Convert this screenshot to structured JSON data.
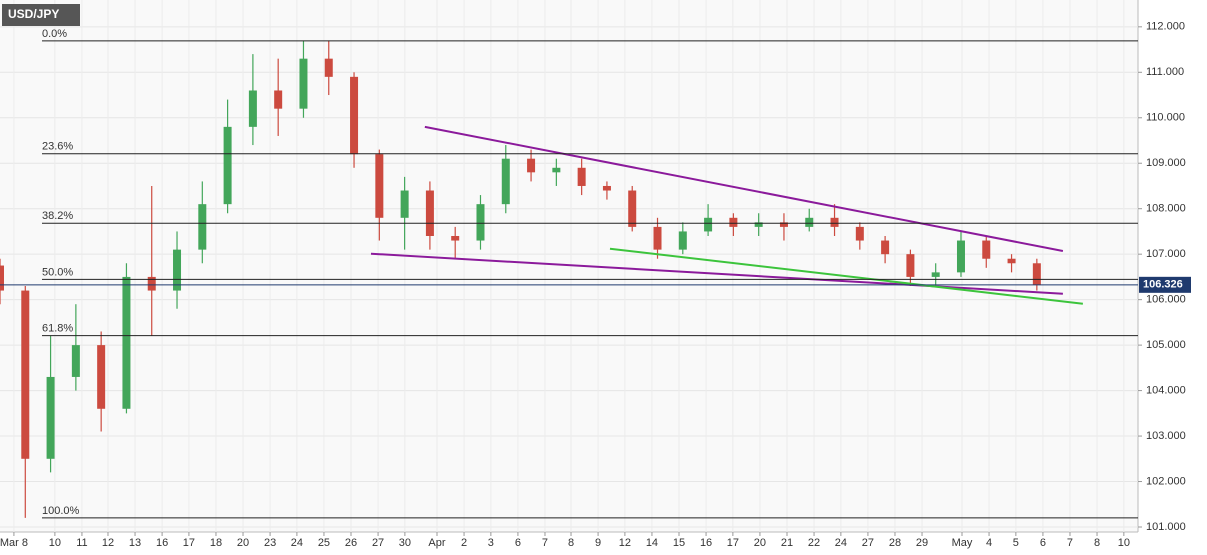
{
  "chart_data": {
    "type": "candlestick",
    "title": "USD/JPY",
    "x": [
      0,
      1,
      2,
      3,
      4,
      5,
      6,
      7,
      8,
      9,
      10,
      11,
      12,
      13,
      14,
      15,
      16,
      17,
      18,
      19,
      20,
      21,
      22,
      23,
      24,
      25,
      26,
      27,
      28,
      29,
      30,
      31,
      32,
      33,
      34,
      35,
      36,
      37,
      38,
      39,
      40,
      41
    ],
    "open": [
      106.75,
      106.2,
      102.5,
      104.3,
      105.0,
      103.6,
      106.5,
      106.2,
      107.1,
      108.1,
      109.8,
      110.6,
      110.2,
      111.3,
      110.9,
      109.2,
      107.8,
      108.4,
      107.4,
      107.3,
      108.1,
      109.1,
      108.8,
      108.9,
      108.5,
      108.4,
      107.6,
      107.1,
      107.5,
      107.8,
      107.6,
      107.7,
      107.6,
      107.8,
      107.6,
      107.3,
      107.0,
      106.5,
      106.6,
      107.3,
      106.9,
      106.8
    ],
    "high": [
      106.9,
      106.3,
      105.2,
      105.9,
      105.3,
      106.8,
      108.5,
      107.5,
      108.6,
      110.4,
      111.4,
      111.3,
      111.7,
      111.7,
      111.0,
      109.3,
      108.7,
      108.6,
      107.6,
      108.3,
      109.4,
      109.3,
      109.1,
      109.1,
      108.6,
      108.5,
      107.8,
      107.7,
      108.1,
      107.9,
      107.9,
      107.9,
      108.0,
      108.1,
      107.7,
      107.4,
      107.1,
      106.8,
      107.5,
      107.4,
      107.0,
      106.9
    ],
    "low": [
      105.9,
      101.2,
      102.2,
      104.0,
      103.1,
      103.5,
      105.2,
      105.8,
      106.8,
      107.9,
      109.4,
      109.6,
      110.0,
      110.5,
      108.9,
      107.3,
      107.1,
      107.1,
      106.9,
      107.1,
      107.9,
      108.6,
      108.5,
      108.3,
      108.2,
      107.5,
      106.9,
      107.0,
      107.4,
      107.4,
      107.4,
      107.3,
      107.5,
      107.4,
      107.1,
      106.8,
      106.3,
      106.3,
      106.5,
      106.7,
      106.6,
      106.2
    ],
    "close": [
      106.2,
      102.5,
      104.3,
      105.0,
      103.6,
      106.5,
      106.2,
      107.1,
      108.1,
      109.8,
      110.6,
      110.2,
      111.3,
      110.9,
      109.2,
      107.8,
      108.4,
      107.4,
      107.3,
      108.1,
      109.1,
      108.8,
      108.9,
      108.5,
      108.4,
      107.6,
      107.1,
      107.5,
      107.8,
      107.6,
      107.7,
      107.6,
      107.8,
      107.6,
      107.3,
      107.0,
      106.5,
      106.6,
      107.3,
      106.9,
      106.8,
      106.33
    ],
    "up_color": "#43a65a",
    "down_color": "#cc4a3f",
    "xlim": [
      0,
      45
    ],
    "xticks": [
      {
        "value": 0.55,
        "label": "Mar 8"
      },
      {
        "value": 2.17,
        "label": "10"
      },
      {
        "value": 3.24,
        "label": "11"
      },
      {
        "value": 4.27,
        "label": "12"
      },
      {
        "value": 5.34,
        "label": "13"
      },
      {
        "value": 6.41,
        "label": "16"
      },
      {
        "value": 7.47,
        "label": "17"
      },
      {
        "value": 8.54,
        "label": "18"
      },
      {
        "value": 9.61,
        "label": "20"
      },
      {
        "value": 10.68,
        "label": "23"
      },
      {
        "value": 11.74,
        "label": "24"
      },
      {
        "value": 12.81,
        "label": "25"
      },
      {
        "value": 13.88,
        "label": "26"
      },
      {
        "value": 14.95,
        "label": "27"
      },
      {
        "value": 16.01,
        "label": "30"
      },
      {
        "value": 17.28,
        "label": "Apr"
      },
      {
        "value": 18.35,
        "label": "2"
      },
      {
        "value": 19.41,
        "label": "3"
      },
      {
        "value": 20.48,
        "label": "6"
      },
      {
        "value": 21.55,
        "label": "7"
      },
      {
        "value": 22.58,
        "label": "8"
      },
      {
        "value": 23.65,
        "label": "9"
      },
      {
        "value": 24.71,
        "label": "12"
      },
      {
        "value": 25.78,
        "label": "14"
      },
      {
        "value": 26.85,
        "label": "15"
      },
      {
        "value": 27.92,
        "label": "16"
      },
      {
        "value": 28.98,
        "label": "17"
      },
      {
        "value": 30.05,
        "label": "20"
      },
      {
        "value": 31.12,
        "label": "21"
      },
      {
        "value": 32.19,
        "label": "22"
      },
      {
        "value": 33.25,
        "label": "24"
      },
      {
        "value": 34.32,
        "label": "27"
      },
      {
        "value": 35.39,
        "label": "28"
      },
      {
        "value": 36.46,
        "label": "29"
      },
      {
        "value": 38.04,
        "label": "May"
      },
      {
        "value": 39.11,
        "label": "4"
      },
      {
        "value": 40.17,
        "label": "5"
      },
      {
        "value": 41.24,
        "label": "6"
      },
      {
        "value": 42.31,
        "label": "7"
      },
      {
        "value": 43.38,
        "label": "8"
      },
      {
        "value": 44.44,
        "label": "10"
      }
    ],
    "ylim": [
      100.89,
      112.59
    ],
    "yticks": [
      {
        "value": 101,
        "label": "101.000"
      },
      {
        "value": 102,
        "label": "102.000"
      },
      {
        "value": 103,
        "label": "103.000"
      },
      {
        "value": 104,
        "label": "104.000"
      },
      {
        "value": 105,
        "label": "105.000"
      },
      {
        "value": 106,
        "label": "106.000"
      },
      {
        "value": 107,
        "label": "107.000"
      },
      {
        "value": 108,
        "label": "108.000"
      },
      {
        "value": 109,
        "label": "109.000"
      },
      {
        "value": 110,
        "label": "110.000"
      },
      {
        "value": 111,
        "label": "111.000"
      },
      {
        "value": 112,
        "label": "112.000"
      }
    ],
    "grid": true,
    "last_price": {
      "value": 106.326,
      "label": "106.326",
      "color": "#1f3a6e"
    },
    "fib_levels": [
      {
        "value": 111.69,
        "label": "0.0%"
      },
      {
        "value": 109.21,
        "label": "23.6%"
      },
      {
        "value": 107.68,
        "label": "38.2%"
      },
      {
        "value": 106.445,
        "label": "50.0%"
      },
      {
        "value": 105.21,
        "label": "61.8%"
      },
      {
        "value": 101.2,
        "label": "100.0%"
      }
    ],
    "trend_lines": [
      {
        "x": [
          16.8,
          42.03
        ],
        "y": [
          109.8,
          107.07
        ],
        "color": "#8b1a9b"
      },
      {
        "x": [
          14.67,
          42.03
        ],
        "y": [
          107.01,
          106.13
        ],
        "color": "#8b1a9b"
      },
      {
        "x": [
          24.12,
          42.82
        ],
        "y": [
          107.12,
          105.91
        ],
        "color": "#3cc43c"
      }
    ]
  }
}
